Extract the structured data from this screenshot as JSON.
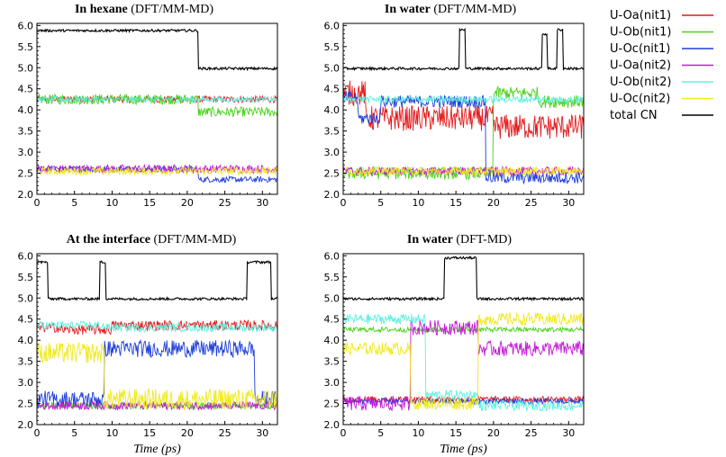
{
  "chart_data": [
    {
      "type": "line",
      "title_bold": "In hexane",
      "title_suffix": "(DFT/MM-MD)",
      "xlabel": "",
      "ylabel": "",
      "xlim": [
        0,
        32
      ],
      "ylim": [
        2.0,
        6.05
      ],
      "xticks": [
        "0",
        "5",
        "10",
        "15",
        "20",
        "25",
        "30"
      ],
      "yticks": [
        "2.0",
        "2.5",
        "3.0",
        "3.5",
        "4.0",
        "4.5",
        "5.0",
        "5.5",
        "6.0"
      ],
      "series": [
        {
          "name": "U-Oa(nit1)",
          "segments": [
            [
              0,
              4.25
            ]
          ],
          "noise": 0.08
        },
        {
          "name": "U-Ob(nit1)",
          "segments": [
            [
              0,
              4.25
            ],
            [
              21.5,
              3.95
            ]
          ],
          "noise": 0.12
        },
        {
          "name": "U-Oc(nit1)",
          "segments": [
            [
              0,
              2.6
            ],
            [
              21.5,
              2.35
            ]
          ],
          "noise": 0.07
        },
        {
          "name": "U-Oa(nit2)",
          "segments": [
            [
              0,
              2.6
            ]
          ],
          "noise": 0.1
        },
        {
          "name": "U-Ob(nit2)",
          "segments": [
            [
              0,
              4.25
            ]
          ],
          "noise": 0.07
        },
        {
          "name": "U-Oc(nit2)",
          "segments": [
            [
              0,
              2.55
            ]
          ],
          "noise": 0.09
        },
        {
          "name": "total CN",
          "segments": [
            [
              0,
              5.88
            ],
            [
              21.5,
              4.98
            ]
          ],
          "noise": 0.03
        }
      ]
    },
    {
      "type": "line",
      "title_bold": "In water",
      "title_suffix": "(DFT/MM-MD)",
      "xlabel": "",
      "ylabel": "",
      "xlim": [
        0,
        32
      ],
      "ylim": [
        2.0,
        6.05
      ],
      "xticks": [
        "0",
        "5",
        "10",
        "15",
        "20",
        "25",
        "30"
      ],
      "yticks": [
        "2.0",
        "2.5",
        "3.0",
        "3.5",
        "4.0",
        "4.5",
        "5.0",
        "5.5",
        "6.0"
      ],
      "series": [
        {
          "name": "U-Oa(nit1)",
          "segments": [
            [
              0,
              4.4
            ],
            [
              3,
              3.8
            ],
            [
              20,
              3.6
            ]
          ],
          "noise": 0.3
        },
        {
          "name": "U-Ob(nit1)",
          "segments": [
            [
              0,
              2.5
            ],
            [
              20,
              4.4
            ],
            [
              26,
              4.2
            ]
          ],
          "noise": 0.15
        },
        {
          "name": "U-Oc(nit1)",
          "segments": [
            [
              0,
              4.3
            ],
            [
              2,
              3.8
            ],
            [
              5,
              4.2
            ],
            [
              19,
              2.4
            ]
          ],
          "noise": 0.15
        },
        {
          "name": "U-Oa(nit2)",
          "segments": [
            [
              0,
              2.55
            ]
          ],
          "noise": 0.1
        },
        {
          "name": "U-Ob(nit2)",
          "segments": [
            [
              0,
              4.25
            ]
          ],
          "noise": 0.08
        },
        {
          "name": "U-Oc(nit2)",
          "segments": [
            [
              0,
              2.55
            ]
          ],
          "noise": 0.1
        },
        {
          "name": "total CN",
          "segments": [
            [
              0,
              4.98
            ],
            [
              15.5,
              5.9
            ],
            [
              16.3,
              4.98
            ],
            [
              26.5,
              5.8
            ],
            [
              27.2,
              4.98
            ],
            [
              28.5,
              5.9
            ],
            [
              29.3,
              4.98
            ]
          ],
          "noise": 0.03
        }
      ]
    },
    {
      "type": "line",
      "title_bold": "At the interface",
      "title_suffix": "(DFT/MM-MD)",
      "xlabel": "Time (ps)",
      "ylabel": "",
      "xlim": [
        0,
        32
      ],
      "ylim": [
        2.0,
        6.05
      ],
      "xticks": [
        "0",
        "5",
        "10",
        "15",
        "20",
        "25",
        "30"
      ],
      "yticks": [
        "2.0",
        "2.5",
        "3.0",
        "3.5",
        "4.0",
        "4.5",
        "5.0",
        "5.5",
        "6.0"
      ],
      "series": [
        {
          "name": "U-Oa(nit1)",
          "segments": [
            [
              0,
              4.3
            ],
            [
              3,
              4.25
            ],
            [
              10,
              4.35
            ]
          ],
          "noise": 0.12
        },
        {
          "name": "U-Ob(nit1)",
          "segments": [
            [
              0,
              2.45
            ]
          ],
          "noise": 0.08
        },
        {
          "name": "U-Oc(nit1)",
          "segments": [
            [
              0,
              2.6
            ],
            [
              9,
              3.8
            ],
            [
              29,
              2.6
            ]
          ],
          "noise": 0.2
        },
        {
          "name": "U-Oa(nit2)",
          "segments": [
            [
              0,
              2.45
            ]
          ],
          "noise": 0.1
        },
        {
          "name": "U-Ob(nit2)",
          "segments": [
            [
              0,
              4.35
            ],
            [
              9,
              4.3
            ]
          ],
          "noise": 0.1
        },
        {
          "name": "U-Oc(nit2)",
          "segments": [
            [
              0,
              3.7
            ],
            [
              9,
              2.6
            ]
          ],
          "noise": 0.25
        },
        {
          "name": "total CN",
          "segments": [
            [
              0,
              5.85
            ],
            [
              1.5,
              4.98
            ],
            [
              8.4,
              5.85
            ],
            [
              9.2,
              4.98
            ],
            [
              28,
              5.85
            ],
            [
              31.2,
              4.98
            ]
          ],
          "noise": 0.03
        }
      ]
    },
    {
      "type": "line",
      "title_bold": "In water",
      "title_suffix": "(DFT-MD)",
      "xlabel": "Time (ps)",
      "ylabel": "",
      "xlim": [
        0,
        32
      ],
      "ylim": [
        2.0,
        6.05
      ],
      "xticks": [
        "0",
        "5",
        "10",
        "15",
        "20",
        "25",
        "30"
      ],
      "yticks": [
        "2.0",
        "2.5",
        "3.0",
        "3.5",
        "4.0",
        "4.5",
        "5.0",
        "5.5",
        "6.0"
      ],
      "series": [
        {
          "name": "U-Oa(nit1)",
          "segments": [
            [
              0,
              2.6
            ]
          ],
          "noise": 0.07
        },
        {
          "name": "U-Ob(nit1)",
          "segments": [
            [
              0,
              4.25
            ]
          ],
          "noise": 0.06
        },
        {
          "name": "U-Oc(nit1)",
          "segments": [
            [
              0,
              2.55
            ]
          ],
          "noise": 0.07
        },
        {
          "name": "U-Oa(nit2)",
          "segments": [
            [
              0,
              2.5
            ],
            [
              9,
              4.3
            ],
            [
              18,
              3.8
            ]
          ],
          "noise": 0.18
        },
        {
          "name": "U-Ob(nit2)",
          "segments": [
            [
              0,
              4.5
            ],
            [
              11,
              2.7
            ],
            [
              18,
              2.45
            ]
          ],
          "noise": 0.12
        },
        {
          "name": "U-Oc(nit2)",
          "segments": [
            [
              0,
              3.8
            ],
            [
              9,
              2.5
            ],
            [
              18,
              4.5
            ]
          ],
          "noise": 0.15
        },
        {
          "name": "total CN",
          "segments": [
            [
              0,
              4.98
            ],
            [
              13.5,
              5.95
            ],
            [
              17.8,
              4.98
            ]
          ],
          "noise": 0.03
        }
      ]
    }
  ],
  "legend": [
    {
      "label": "U-Oa(nit1)",
      "color": "#e41a1c"
    },
    {
      "label": "U-Ob(nit1)",
      "color": "#4bd11a"
    },
    {
      "label": "U-Oc(nit1)",
      "color": "#1f3fd8"
    },
    {
      "label": "U-Oa(nit2)",
      "color": "#c41ad8"
    },
    {
      "label": "U-Ob(nit2)",
      "color": "#5ff0e0"
    },
    {
      "label": "U-Oc(nit2)",
      "color": "#f0ea1a"
    },
    {
      "label": "total CN",
      "color": "#000000"
    }
  ]
}
